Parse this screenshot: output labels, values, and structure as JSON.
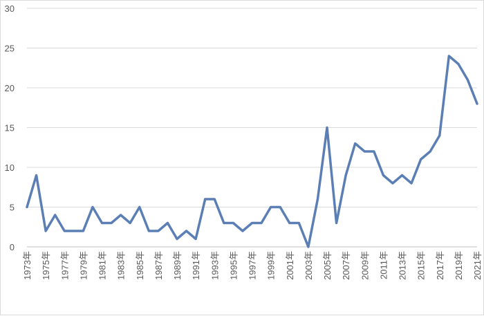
{
  "chart_data": {
    "type": "line",
    "title": "",
    "xlabel": "",
    "ylabel": "",
    "ylim": [
      0,
      30
    ],
    "yticks": [
      0,
      5,
      10,
      15,
      20,
      25,
      30
    ],
    "grid": true,
    "legend": "none",
    "x": [
      "1973年",
      "1974年",
      "1975年",
      "1976年",
      "1977年",
      "1978年",
      "1979年",
      "1980年",
      "1981年",
      "1982年",
      "1983年",
      "1984年",
      "1985年",
      "1986年",
      "1987年",
      "1988年",
      "1989年",
      "1990年",
      "1991年",
      "1992年",
      "1993年",
      "1994年",
      "1995年",
      "1996年",
      "1997年",
      "1998年",
      "1999年",
      "2000年",
      "2001年",
      "2002年",
      "2003年",
      "2004年",
      "2005年",
      "2006年",
      "2007年",
      "2008年",
      "2009年",
      "2010年",
      "2011年",
      "2012年",
      "2013年",
      "2014年",
      "2015年",
      "2016年",
      "2017年",
      "2018年",
      "2019年",
      "2020年",
      "2021年"
    ],
    "x_tick_labels": [
      "1973年",
      "1975年",
      "1977年",
      "1979年",
      "1981年",
      "1983年",
      "1985年",
      "1987年",
      "1989年",
      "1991年",
      "1993年",
      "1995年",
      "1997年",
      "1999年",
      "2001年",
      "2003年",
      "2005年",
      "2007年",
      "2009年",
      "2011年",
      "2013年",
      "2015年",
      "2017年",
      "2019年",
      "2021年"
    ],
    "series": [
      {
        "color": "#5b7fb5",
        "values": [
          5,
          9,
          2,
          4,
          2,
          2,
          2,
          5,
          3,
          3,
          4,
          3,
          5,
          2,
          2,
          3,
          1,
          2,
          1,
          6,
          6,
          3,
          3,
          2,
          3,
          3,
          5,
          5,
          3,
          3,
          0,
          6,
          15,
          3,
          9,
          13,
          12,
          12,
          9,
          8,
          9,
          8,
          11,
          12,
          14,
          24,
          23,
          21,
          18
        ]
      }
    ]
  }
}
